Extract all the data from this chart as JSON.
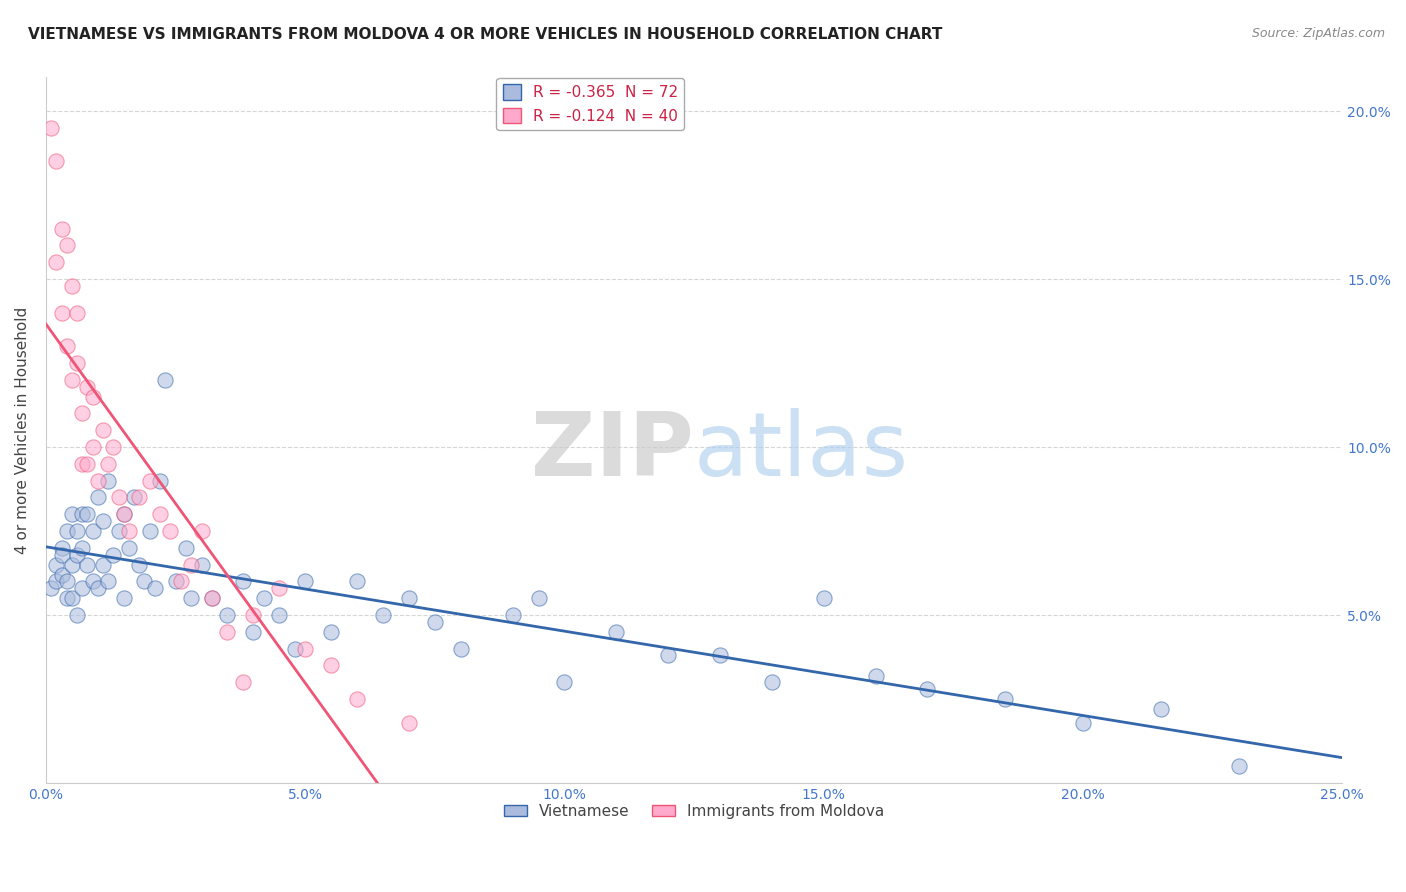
{
  "title": "VIETNAMESE VS IMMIGRANTS FROM MOLDOVA 4 OR MORE VEHICLES IN HOUSEHOLD CORRELATION CHART",
  "source": "Source: ZipAtlas.com",
  "ylabel": "4 or more Vehicles in Household",
  "xlim": [
    0.0,
    0.25
  ],
  "ylim": [
    0.0,
    0.21
  ],
  "xticklabels": [
    "0.0%",
    "5.0%",
    "10.0%",
    "15.0%",
    "20.0%",
    "25.0%"
  ],
  "xtick_vals": [
    0.0,
    0.05,
    0.1,
    0.15,
    0.2,
    0.25
  ],
  "ytick_vals": [
    0.0,
    0.05,
    0.1,
    0.15,
    0.2
  ],
  "ytick_right_vals": [
    0.05,
    0.1,
    0.15,
    0.2
  ],
  "yticklabels_right": [
    "5.0%",
    "10.0%",
    "15.0%",
    "20.0%"
  ],
  "legend_label1": "R = -0.365  N = 72",
  "legend_label2": "R = -0.124  N = 40",
  "series1_color": "#aabbdd",
  "series2_color": "#ffaacc",
  "trendline1_color": "#3366aa",
  "trendline2_color": "#ee5577",
  "series1_name": "Vietnamese",
  "series2_name": "Immigrants from Moldova",
  "background_color": "#ffffff",
  "grid_color": "#cccccc",
  "tick_color": "#4477cc",
  "title_fontsize": 11,
  "legend_fontsize": 11,
  "axis_label_fontsize": 11,
  "tick_fontsize": 10,
  "watermark_zip": "ZIP",
  "watermark_atlas": "atlas",
  "viet_x": [
    0.001,
    0.002,
    0.002,
    0.003,
    0.003,
    0.003,
    0.004,
    0.004,
    0.004,
    0.005,
    0.005,
    0.005,
    0.006,
    0.006,
    0.006,
    0.007,
    0.007,
    0.007,
    0.008,
    0.008,
    0.009,
    0.009,
    0.01,
    0.01,
    0.011,
    0.011,
    0.012,
    0.012,
    0.013,
    0.014,
    0.015,
    0.015,
    0.016,
    0.017,
    0.018,
    0.019,
    0.02,
    0.021,
    0.022,
    0.023,
    0.025,
    0.027,
    0.028,
    0.03,
    0.032,
    0.035,
    0.038,
    0.04,
    0.042,
    0.045,
    0.048,
    0.05,
    0.055,
    0.06,
    0.065,
    0.07,
    0.075,
    0.08,
    0.09,
    0.095,
    0.1,
    0.11,
    0.12,
    0.13,
    0.14,
    0.15,
    0.16,
    0.17,
    0.185,
    0.2,
    0.215,
    0.23
  ],
  "viet_y": [
    0.058,
    0.065,
    0.06,
    0.07,
    0.068,
    0.062,
    0.075,
    0.06,
    0.055,
    0.08,
    0.065,
    0.055,
    0.075,
    0.068,
    0.05,
    0.08,
    0.07,
    0.058,
    0.08,
    0.065,
    0.075,
    0.06,
    0.085,
    0.058,
    0.078,
    0.065,
    0.09,
    0.06,
    0.068,
    0.075,
    0.08,
    0.055,
    0.07,
    0.085,
    0.065,
    0.06,
    0.075,
    0.058,
    0.09,
    0.12,
    0.06,
    0.07,
    0.055,
    0.065,
    0.055,
    0.05,
    0.06,
    0.045,
    0.055,
    0.05,
    0.04,
    0.06,
    0.045,
    0.06,
    0.05,
    0.055,
    0.048,
    0.04,
    0.05,
    0.055,
    0.03,
    0.045,
    0.038,
    0.038,
    0.03,
    0.055,
    0.032,
    0.028,
    0.025,
    0.018,
    0.022,
    0.005
  ],
  "mold_x": [
    0.001,
    0.002,
    0.002,
    0.003,
    0.003,
    0.004,
    0.004,
    0.005,
    0.005,
    0.006,
    0.006,
    0.007,
    0.007,
    0.008,
    0.008,
    0.009,
    0.009,
    0.01,
    0.011,
    0.012,
    0.013,
    0.014,
    0.015,
    0.016,
    0.018,
    0.02,
    0.022,
    0.024,
    0.026,
    0.028,
    0.03,
    0.032,
    0.035,
    0.038,
    0.04,
    0.045,
    0.05,
    0.055,
    0.06,
    0.07
  ],
  "mold_y": [
    0.195,
    0.185,
    0.155,
    0.165,
    0.14,
    0.16,
    0.13,
    0.148,
    0.12,
    0.125,
    0.14,
    0.095,
    0.11,
    0.118,
    0.095,
    0.1,
    0.115,
    0.09,
    0.105,
    0.095,
    0.1,
    0.085,
    0.08,
    0.075,
    0.085,
    0.09,
    0.08,
    0.075,
    0.06,
    0.065,
    0.075,
    0.055,
    0.045,
    0.03,
    0.05,
    0.058,
    0.04,
    0.035,
    0.025,
    0.018
  ]
}
